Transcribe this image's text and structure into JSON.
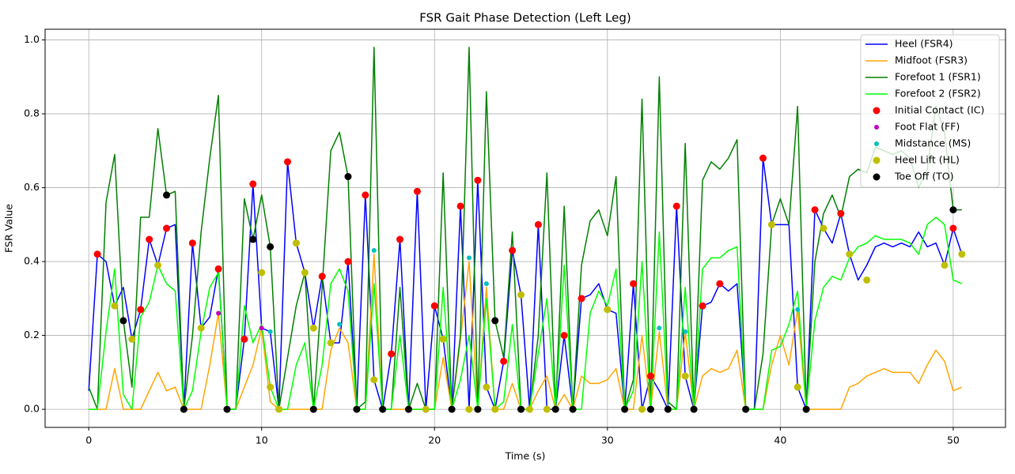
{
  "chart_data": {
    "type": "line",
    "title": "FSR Gait Phase Detection (Left Leg)",
    "xlabel": "Time (s)",
    "ylabel": "FSR Value",
    "xlim": [
      -2.525,
      53.025
    ],
    "ylim": [
      -0.049,
      1.029
    ],
    "xticks": [
      0,
      10,
      20,
      30,
      40,
      50
    ],
    "yticks": [
      {
        "value": 0,
        "label": "0.0"
      },
      {
        "value": 0.2,
        "label": "0.2"
      },
      {
        "value": 0.4,
        "label": "0.4"
      },
      {
        "value": 0.6,
        "label": "0.6"
      },
      {
        "value": 0.8,
        "label": "0.8"
      },
      {
        "value": 1.0,
        "label": "1.0"
      }
    ],
    "grid": true,
    "legend": "upper right",
    "x": [
      0,
      0.5,
      1,
      1.5,
      2,
      2.5,
      3,
      3.5,
      4,
      4.5,
      5,
      5.5,
      6,
      6.5,
      7,
      7.5,
      8,
      8.5,
      9,
      9.5,
      10,
      10.5,
      11,
      11.5,
      12,
      12.5,
      13,
      13.5,
      14,
      14.5,
      15,
      15.5,
      16,
      16.5,
      17,
      17.5,
      18,
      18.5,
      19,
      19.5,
      20,
      20.5,
      21,
      21.5,
      22,
      22.5,
      23,
      23.5,
      24,
      24.5,
      25,
      25.5,
      26,
      26.5,
      27,
      27.5,
      28,
      28.5,
      29,
      29.5,
      30,
      30.5,
      31,
      31.5,
      32,
      32.5,
      33,
      33.5,
      34,
      34.5,
      35,
      35.5,
      36,
      36.5,
      37,
      37.5,
      38,
      38.5,
      39,
      39.5,
      40,
      40.5,
      41,
      41.5,
      42,
      42.5,
      43,
      43.5,
      44,
      44.5,
      45,
      45.5,
      46,
      46.5,
      47,
      47.5,
      48,
      48.5,
      49,
      49.5,
      50,
      50.5
    ],
    "series": [
      {
        "name": "Heel (FSR4)",
        "type": "line",
        "color": "#0000ff",
        "values": [
          0.05,
          0.42,
          0.4,
          0.28,
          0.33,
          0.19,
          0.27,
          0.46,
          0.39,
          0.49,
          0.5,
          0,
          0.45,
          0.22,
          0.25,
          0.38,
          0,
          0,
          0.19,
          0.61,
          0.22,
          0.21,
          0,
          0.67,
          0.45,
          0.37,
          0.22,
          0.36,
          0.18,
          0.18,
          0.4,
          0,
          0.58,
          0.08,
          0,
          0.15,
          0.46,
          0,
          0.59,
          0,
          0.28,
          0.19,
          0,
          0.55,
          0,
          0.62,
          0.06,
          0,
          0.13,
          0.43,
          0.31,
          0,
          0.5,
          0,
          0,
          0.2,
          0,
          0.3,
          0.31,
          0.34,
          0.27,
          0.26,
          0,
          0.34,
          0,
          0.09,
          0.05,
          0,
          0.55,
          0.09,
          0,
          0.28,
          0.29,
          0.34,
          0.32,
          0.34,
          0,
          0,
          0.68,
          0.5,
          0.5,
          0.5,
          0.06,
          0,
          0.54,
          0.49,
          0.45,
          0.53,
          0.42,
          0.35,
          0.39,
          0.44,
          0.45,
          0.44,
          0.45,
          0.44,
          0.48,
          0.44,
          0.45,
          0.39,
          0.49,
          0.42
        ]
      },
      {
        "name": "Midfoot (FSR3)",
        "type": "line",
        "color": "#ffa500",
        "values": [
          0,
          0,
          0,
          0.11,
          0,
          0,
          0,
          0.05,
          0.1,
          0.05,
          0.06,
          0,
          0,
          0,
          0.12,
          0.26,
          0,
          0,
          0.06,
          0.12,
          0.22,
          0.02,
          0,
          0,
          0,
          0,
          0,
          0,
          0.16,
          0.22,
          0.18,
          0,
          0,
          0.42,
          0,
          0,
          0,
          0,
          0,
          0,
          0,
          0.14,
          0,
          0.19,
          0.4,
          0,
          0.33,
          0,
          0,
          0.07,
          0,
          0,
          0.05,
          0.09,
          0,
          0.04,
          0,
          0.09,
          0.07,
          0.07,
          0.08,
          0.11,
          0,
          0,
          0.2,
          0,
          0.21,
          0,
          0,
          0.21,
          0,
          0.09,
          0.11,
          0.1,
          0.11,
          0.16,
          0,
          0,
          0,
          0.12,
          0.2,
          0.12,
          0.27,
          0,
          0,
          0,
          0,
          0,
          0.06,
          0.07,
          0.09,
          0.1,
          0.11,
          0.1,
          0.1,
          0.1,
          0.07,
          0.12,
          0.16,
          0.13,
          0.05,
          0.06
        ]
      },
      {
        "name": "Forefoot 1 (FSR1)",
        "type": "line",
        "color": "#008000",
        "values": [
          0.06,
          0,
          0.56,
          0.69,
          0.24,
          0.06,
          0.52,
          0.52,
          0.76,
          0.58,
          0.59,
          0,
          0.2,
          0.48,
          0.68,
          0.85,
          0,
          0,
          0.57,
          0.46,
          0.58,
          0.44,
          0,
          0.14,
          0.28,
          0.37,
          0,
          0.33,
          0.7,
          0.75,
          0.63,
          0,
          0.02,
          0.98,
          0,
          0,
          0.33,
          0,
          0.07,
          0,
          0,
          0.64,
          0,
          0.2,
          0.98,
          0,
          0.86,
          0.24,
          0.14,
          0.48,
          0,
          0,
          0.2,
          0.64,
          0,
          0.55,
          0,
          0.39,
          0.51,
          0.54,
          0.47,
          0.63,
          0,
          0.08,
          0.84,
          0,
          0.9,
          0.02,
          0,
          0.72,
          0,
          0.62,
          0.67,
          0.65,
          0.68,
          0.73,
          0,
          0,
          0.15,
          0.5,
          0.57,
          0.5,
          0.82,
          0,
          0.4,
          0.53,
          0.58,
          0.52,
          0.63,
          0.65,
          0.64,
          0.71,
          0.7,
          0.69,
          0.7,
          0.68,
          0.6,
          0.65,
          0.82,
          0.75,
          0.54,
          0.54
        ]
      },
      {
        "name": "Forefoot 2 (FSR2)",
        "type": "line",
        "color": "#00ff00",
        "values": [
          0,
          0,
          0.21,
          0.38,
          0.04,
          0,
          0.25,
          0.29,
          0.39,
          0.34,
          0.32,
          0,
          0.05,
          0.21,
          0.33,
          0.37,
          0,
          0,
          0.28,
          0.18,
          0.23,
          0.06,
          0,
          0,
          0.12,
          0.18,
          0,
          0.12,
          0.34,
          0.38,
          0.32,
          0,
          0,
          0.34,
          0,
          0,
          0.2,
          0,
          0,
          0,
          0,
          0.33,
          0,
          0.08,
          0.2,
          0,
          0.3,
          0,
          0.02,
          0.23,
          0,
          0,
          0.15,
          0.3,
          0,
          0.39,
          0,
          0,
          0.26,
          0.32,
          0.28,
          0.38,
          0,
          0.05,
          0.4,
          0,
          0.48,
          0,
          0,
          0.33,
          0,
          0.38,
          0.41,
          0.41,
          0.43,
          0.44,
          0,
          0,
          0,
          0.16,
          0.17,
          0.23,
          0.32,
          0,
          0.24,
          0.33,
          0.36,
          0.35,
          0.41,
          0.44,
          0.45,
          0.47,
          0.46,
          0.46,
          0.46,
          0.45,
          0.42,
          0.5,
          0.52,
          0.5,
          0.35,
          0.34
        ]
      },
      {
        "name": "Initial Contact (IC)",
        "type": "scatter",
        "color": "#ff0000",
        "x": [
          0.5,
          3,
          3.5,
          4.5,
          6,
          7.5,
          9,
          9.5,
          11.5,
          13.5,
          15,
          16,
          17.5,
          18,
          19,
          20,
          21.5,
          22.5,
          24,
          24.5,
          26,
          27.5,
          28.5,
          31.5,
          32.5,
          34,
          35.5,
          36.5,
          39,
          42,
          43.5,
          50
        ],
        "values": [
          0.42,
          0.27,
          0.46,
          0.49,
          0.45,
          0.38,
          0.19,
          0.61,
          0.67,
          0.36,
          0.4,
          0.58,
          0.15,
          0.46,
          0.59,
          0.28,
          0.55,
          0.62,
          0.13,
          0.43,
          0.5,
          0.2,
          0.3,
          0.34,
          0.09,
          0.55,
          0.28,
          0.34,
          0.68,
          0.54,
          0.53,
          0.49
        ]
      },
      {
        "name": "Foot Flat (FF)",
        "type": "scatter",
        "color": "#c000c0",
        "size": "small",
        "x": [
          7.5,
          10
        ],
        "values": [
          0.26,
          0.22
        ]
      },
      {
        "name": "Midstance (MS)",
        "type": "scatter",
        "color": "#00c0c0",
        "size": "small",
        "x": [
          10.5,
          14.5,
          16.5,
          22,
          23,
          33,
          34.5,
          41
        ],
        "values": [
          0.21,
          0.23,
          0.43,
          0.41,
          0.34,
          0.22,
          0.21,
          0.27
        ]
      },
      {
        "name": "Heel Lift (HL)",
        "type": "scatter",
        "color": "#bfbf00",
        "x": [
          1.5,
          2.5,
          4,
          6.5,
          10,
          10.5,
          11,
          12,
          12.5,
          13,
          14,
          16.5,
          19.5,
          20.5,
          22,
          23,
          23.5,
          25,
          25.5,
          26.5,
          30,
          32,
          34.5,
          39.5,
          41,
          42.5,
          44,
          45,
          49.5,
          50.5
        ],
        "values": [
          0.28,
          0.19,
          0.39,
          0.22,
          0.37,
          0.06,
          0,
          0.45,
          0.37,
          0.22,
          0.18,
          0.08,
          0,
          0.19,
          0,
          0.06,
          0,
          0.31,
          0,
          0,
          0.27,
          0,
          0.09,
          0.5,
          0.06,
          0.49,
          0.42,
          0.35,
          0.39,
          0.42
        ]
      },
      {
        "name": "Toe Off (TO)",
        "type": "scatter",
        "color": "#000000",
        "x": [
          2,
          4.5,
          5.5,
          8,
          9.5,
          10.5,
          13,
          15,
          15.5,
          17,
          18.5,
          21,
          22.5,
          23.5,
          25,
          27,
          28,
          31,
          32.5,
          33.5,
          35,
          38,
          41.5,
          50
        ],
        "values": [
          0.24,
          0.58,
          0,
          0,
          0.46,
          0.44,
          0,
          0.63,
          0,
          0,
          0,
          0,
          0,
          0.24,
          0,
          0,
          0,
          0,
          0,
          0,
          0,
          0,
          0,
          0.54
        ]
      }
    ]
  }
}
